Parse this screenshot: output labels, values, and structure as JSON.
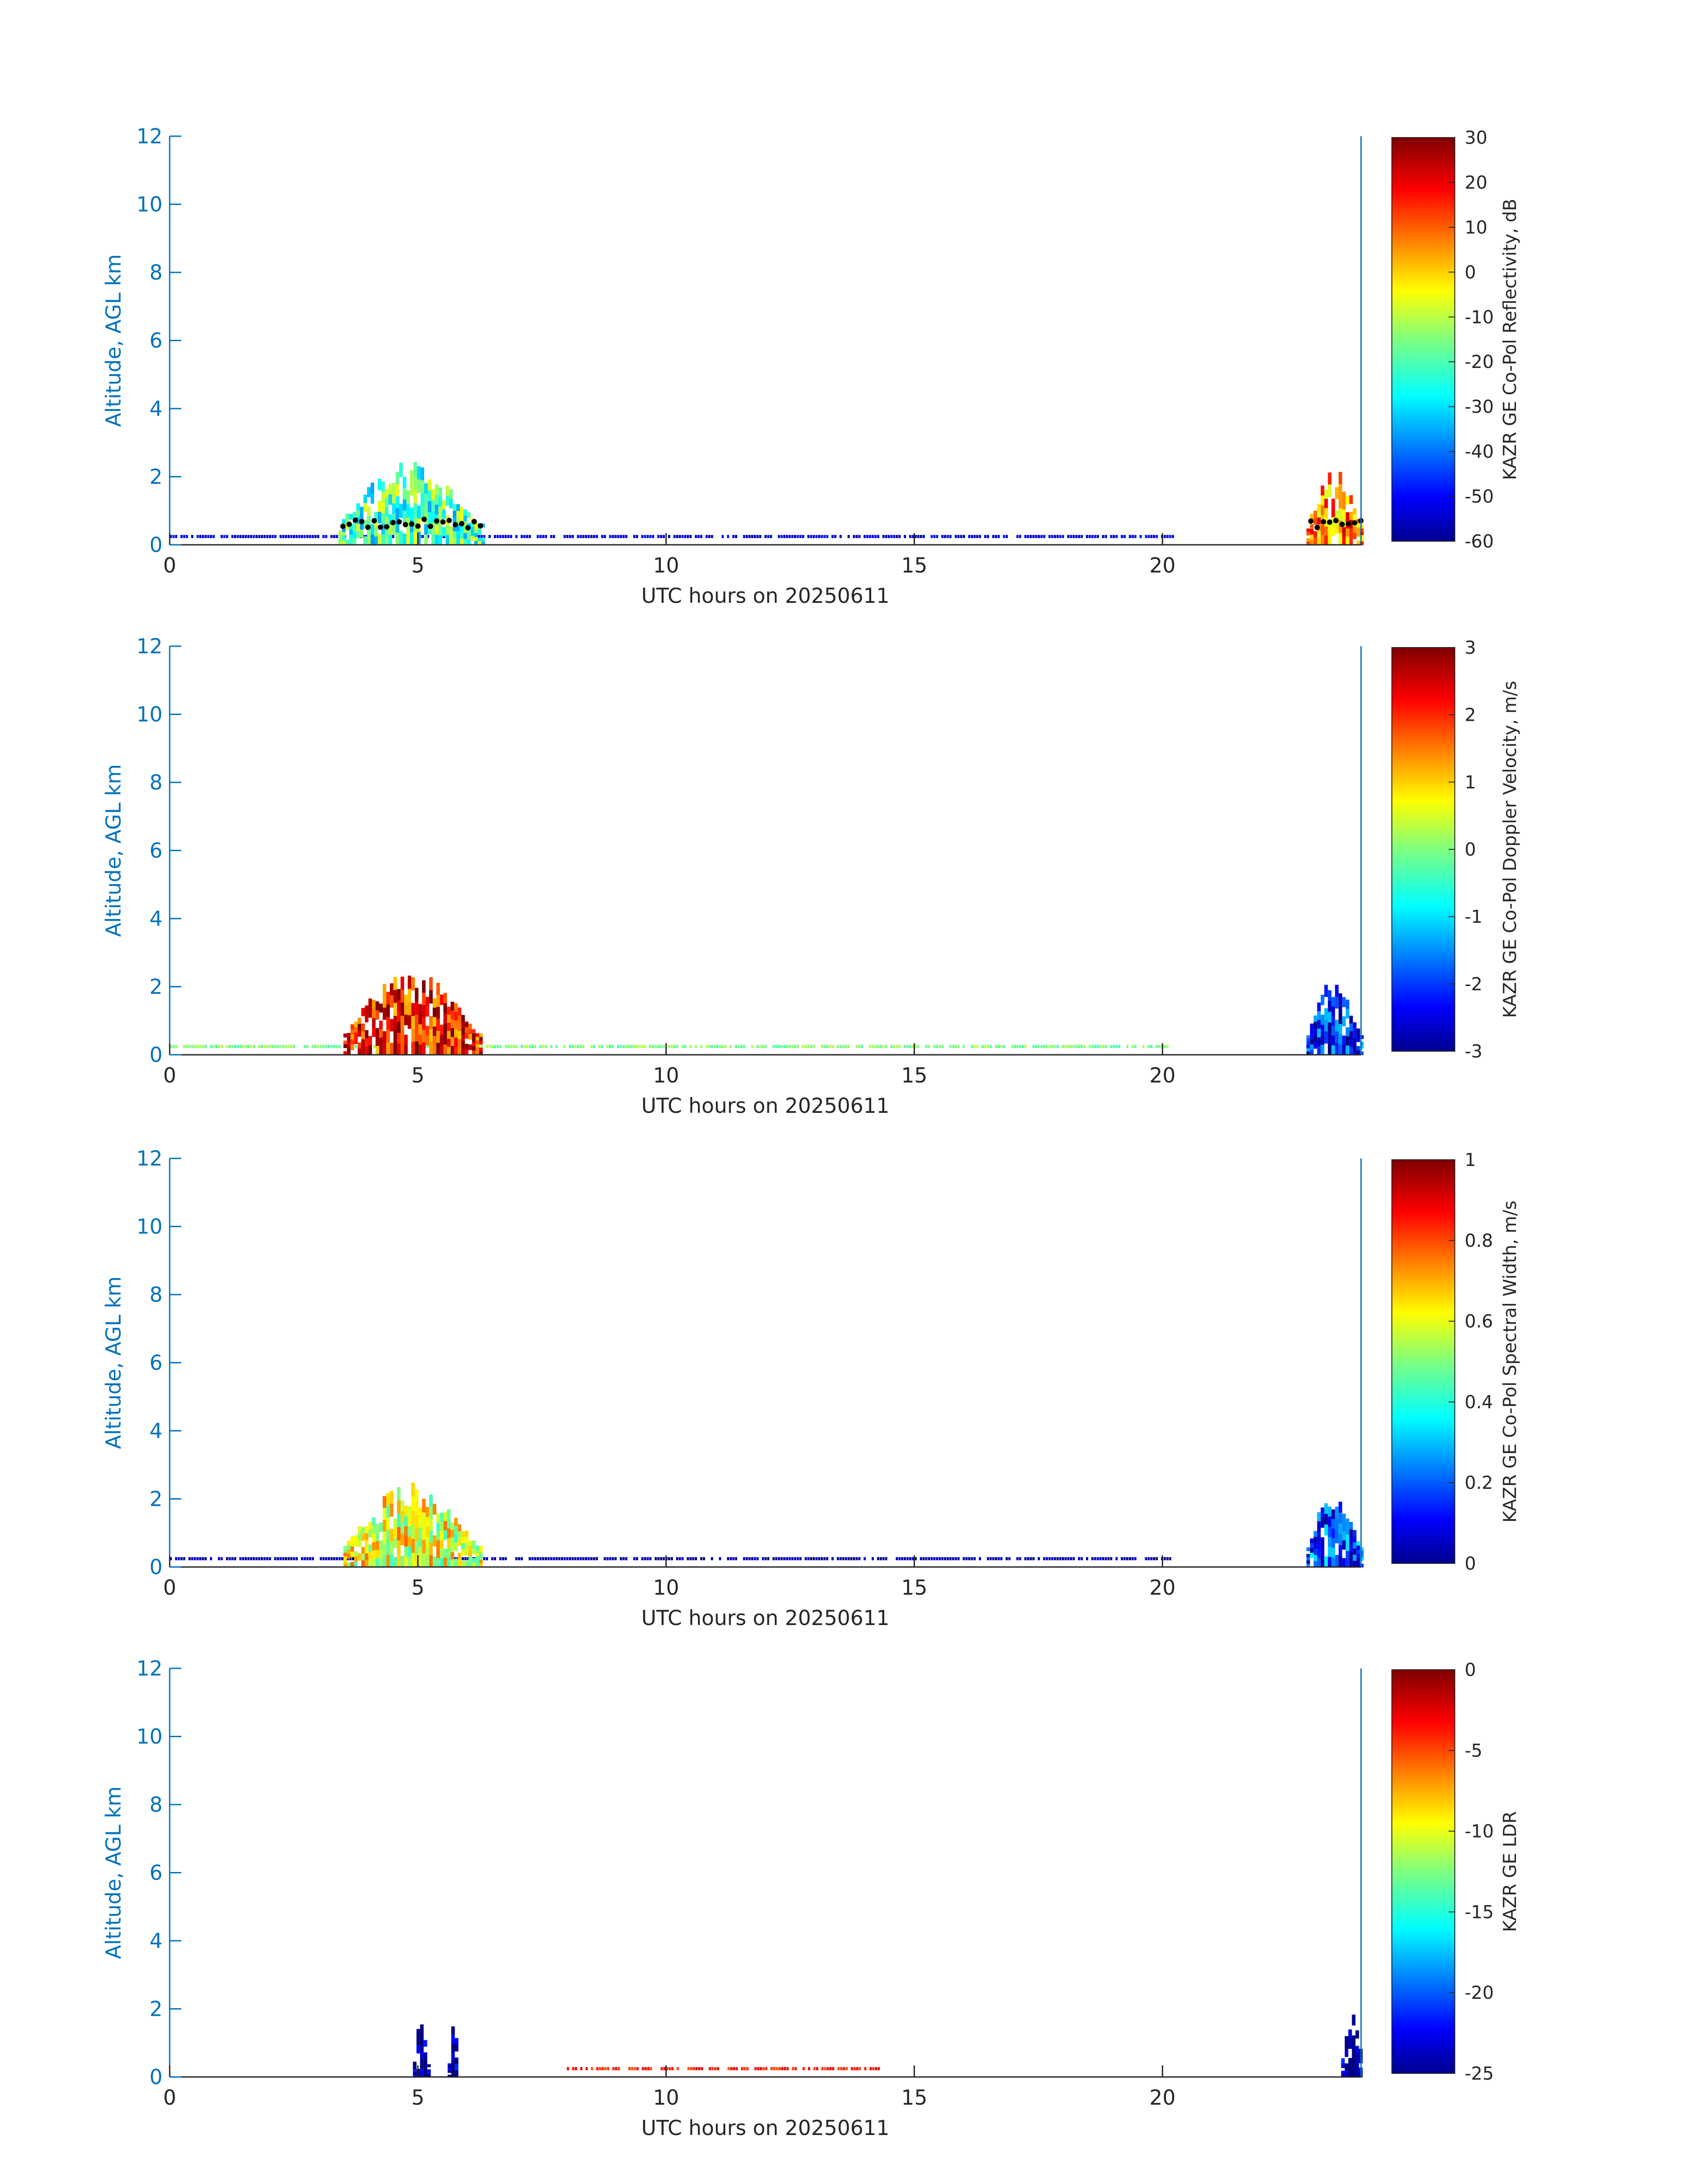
{
  "chart_data": [
    {
      "type": "heatmap",
      "xlabel": "UTC hours on 20250611",
      "ylabel": "Altitude, AGL km",
      "xlim": [
        0,
        24
      ],
      "ylim": [
        0,
        12
      ],
      "xticks": [
        0,
        5,
        10,
        15,
        20
      ],
      "yticks": [
        0,
        2,
        4,
        6,
        8,
        10,
        12
      ],
      "colorbar": {
        "label": "KAZR GE Co-Pol Reflectivity, dB",
        "range": [
          -60,
          30
        ],
        "ticks": [
          30,
          20,
          10,
          0,
          -10,
          -20,
          -30,
          -40,
          -50,
          -60
        ]
      },
      "colormap": "jet",
      "overlay_points": "black",
      "features": [
        {
          "x_start": 3.4,
          "x_end": 6.3,
          "top_km": 2.5,
          "value_level": 0.45
        },
        {
          "x_start": 22.9,
          "x_end": 24.0,
          "top_km": 2.3,
          "value_level": 0.75
        }
      ],
      "surface_echo": {
        "x_start": 0,
        "x_end": 20.2,
        "height_km": 0.25,
        "value_level": 0.1
      }
    },
    {
      "type": "heatmap",
      "xlabel": "UTC hours on 20250611",
      "ylabel": "Altitude, AGL km",
      "xlim": [
        0,
        24
      ],
      "ylim": [
        0,
        12
      ],
      "xticks": [
        0,
        5,
        10,
        15,
        20
      ],
      "yticks": [
        0,
        2,
        4,
        6,
        8,
        10,
        12
      ],
      "colorbar": {
        "label": "KAZR GE Co-Pol Doppler Velocity, m/s",
        "range": [
          -3,
          3
        ],
        "ticks": [
          3,
          2,
          1,
          0,
          -1,
          -2,
          -3
        ]
      },
      "colormap": "jet",
      "features": [
        {
          "x_start": 3.5,
          "x_end": 6.3,
          "top_km": 2.5,
          "value_level": 0.85
        },
        {
          "x_start": 22.9,
          "x_end": 24.0,
          "top_km": 2.3,
          "value_level": 0.15
        }
      ],
      "surface_echo": {
        "x_start": 0,
        "x_end": 20.2,
        "height_km": 0.25,
        "value_level": 0.5
      }
    },
    {
      "type": "heatmap",
      "xlabel": "UTC hours on 20250611",
      "ylabel": "Altitude, AGL km",
      "xlim": [
        0,
        24
      ],
      "ylim": [
        0,
        12
      ],
      "xticks": [
        0,
        5,
        10,
        15,
        20
      ],
      "yticks": [
        0,
        2,
        4,
        6,
        8,
        10,
        12
      ],
      "colorbar": {
        "label": "KAZR GE Co-Pol Spectral Width, m/s",
        "range": [
          0,
          1
        ],
        "ticks": [
          "1",
          "0.8",
          "0.6",
          "0.4",
          "0.2",
          "0"
        ]
      },
      "colormap": "jet",
      "features": [
        {
          "x_start": 3.5,
          "x_end": 6.3,
          "top_km": 2.5,
          "value_level": 0.6
        },
        {
          "x_start": 22.9,
          "x_end": 24.0,
          "top_km": 2.3,
          "value_level": 0.2
        }
      ],
      "surface_echo": {
        "x_start": 0,
        "x_end": 20.2,
        "height_km": 0.25,
        "value_level": 0.05
      }
    },
    {
      "type": "heatmap",
      "xlabel": "UTC hours on 20250611",
      "ylabel": "Altitude, AGL km",
      "xlim": [
        0,
        24
      ],
      "ylim": [
        0,
        12
      ],
      "xticks": [
        0,
        5,
        10,
        15,
        20
      ],
      "yticks": [
        0,
        2,
        4,
        6,
        8,
        10,
        12
      ],
      "colorbar": {
        "label": "KAZR GE LDR",
        "range": [
          -25,
          0
        ],
        "ticks": [
          0,
          -5,
          -10,
          -15,
          -20,
          -25
        ]
      },
      "colormap": "jet",
      "features": [
        {
          "x_start": 4.9,
          "x_end": 5.2,
          "top_km": 1.8,
          "value_level": 0.02
        },
        {
          "x_start": 5.6,
          "x_end": 5.8,
          "top_km": 1.6,
          "value_level": 0.02
        },
        {
          "x_start": 23.6,
          "x_end": 24.0,
          "top_km": 2.2,
          "value_level": 0.03
        }
      ],
      "surface_echo": {
        "x_start": 8.0,
        "x_end": 14.3,
        "height_km": 0.25,
        "value_level": 0.85
      }
    }
  ]
}
